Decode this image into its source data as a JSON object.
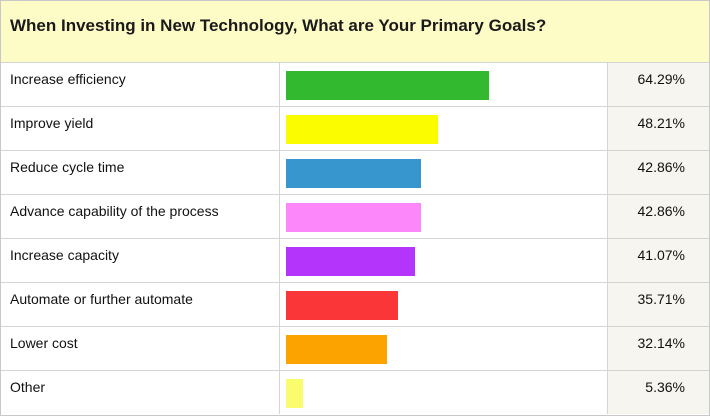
{
  "title": "When Investing in New Technology, What are Your Primary Goals?",
  "chart_data": {
    "type": "bar",
    "orientation": "horizontal",
    "title": "When Investing in New Technology, What are Your Primary Goals?",
    "xlim": [
      0,
      100
    ],
    "grid": false,
    "legend": "none",
    "categories": [
      "Increase efficiency",
      "Improve yield",
      "Reduce cycle time",
      "Advance capability of the process",
      "Increase capacity",
      "Automate or further automate",
      "Lower cost",
      "Other"
    ],
    "values": [
      64.29,
      48.21,
      42.86,
      42.86,
      41.07,
      35.71,
      32.14,
      5.36
    ],
    "value_labels": [
      "64.29%",
      "48.21%",
      "42.86%",
      "42.86%",
      "41.07%",
      "35.71%",
      "32.14%",
      "5.36%"
    ],
    "colors": [
      "#33b92f",
      "#fcfc00",
      "#3896cf",
      "#fb87fb",
      "#b434fb",
      "#fb3639",
      "#fca300",
      "#fbfb6e"
    ]
  }
}
